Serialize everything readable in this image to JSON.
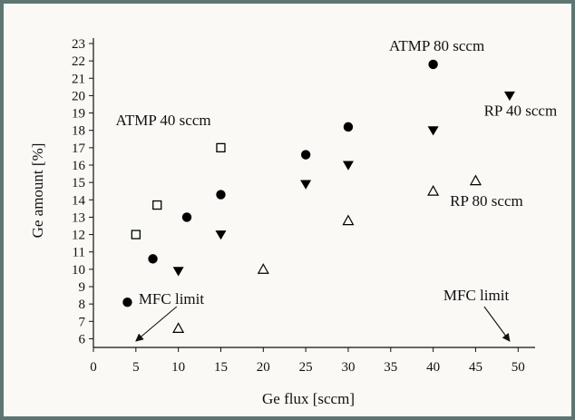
{
  "chart_data": {
    "type": "scatter",
    "xlabel": "Ge flux [sccm]",
    "ylabel": "Ge amount [%]",
    "xlim": [
      0,
      52
    ],
    "ylim": [
      5.5,
      23
    ],
    "x_ticks": [
      0,
      5,
      10,
      15,
      20,
      25,
      30,
      35,
      40,
      45,
      50
    ],
    "y_ticks": [
      6,
      7,
      8,
      9,
      10,
      11,
      12,
      13,
      14,
      15,
      16,
      17,
      18,
      19,
      20,
      21,
      22,
      23
    ],
    "grid": false,
    "series": [
      {
        "name": "ATMP 80 sccm",
        "marker": "filled-circle",
        "color": "#000000",
        "points": [
          [
            4,
            8.1
          ],
          [
            7,
            10.6
          ],
          [
            11,
            13.0
          ],
          [
            15,
            14.3
          ],
          [
            25,
            16.6
          ],
          [
            30,
            18.2
          ],
          [
            40,
            21.8
          ]
        ]
      },
      {
        "name": "ATMP 40 sccm",
        "marker": "open-square",
        "color": "#000000",
        "points": [
          [
            5,
            12.0
          ],
          [
            7.5,
            13.7
          ],
          [
            15,
            17.0
          ]
        ]
      },
      {
        "name": "RP 40 sccm",
        "marker": "filled-triangle-down",
        "color": "#000000",
        "points": [
          [
            10,
            9.9
          ],
          [
            15,
            12.0
          ],
          [
            25,
            14.9
          ],
          [
            30,
            16.0
          ],
          [
            40,
            18.0
          ],
          [
            49,
            20.0
          ]
        ]
      },
      {
        "name": "RP 80 sccm",
        "marker": "open-triangle-up",
        "color": "#000000",
        "points": [
          [
            10,
            6.6
          ],
          [
            20,
            10.0
          ],
          [
            30,
            12.8
          ],
          [
            40,
            14.5
          ],
          [
            45,
            15.1
          ]
        ]
      }
    ],
    "annotations": [
      {
        "text": "ATMP 80 sccm",
        "near": [
          40,
          21.8
        ],
        "placement": "above-left"
      },
      {
        "text": "ATMP 40 sccm",
        "near": [
          15,
          17.0
        ],
        "placement": "above-left"
      },
      {
        "text": "RP 40 sccm",
        "near": [
          49,
          20.0
        ],
        "placement": "below"
      },
      {
        "text": "RP 80 sccm",
        "near": [
          45,
          15.1
        ],
        "placement": "below"
      },
      {
        "text": "MFC limit",
        "arrow_to": [
          5,
          5.5
        ],
        "placement": "above-right"
      },
      {
        "text": "MFC limit",
        "arrow_to": [
          49,
          5.5
        ],
        "placement": "above-left"
      }
    ]
  }
}
